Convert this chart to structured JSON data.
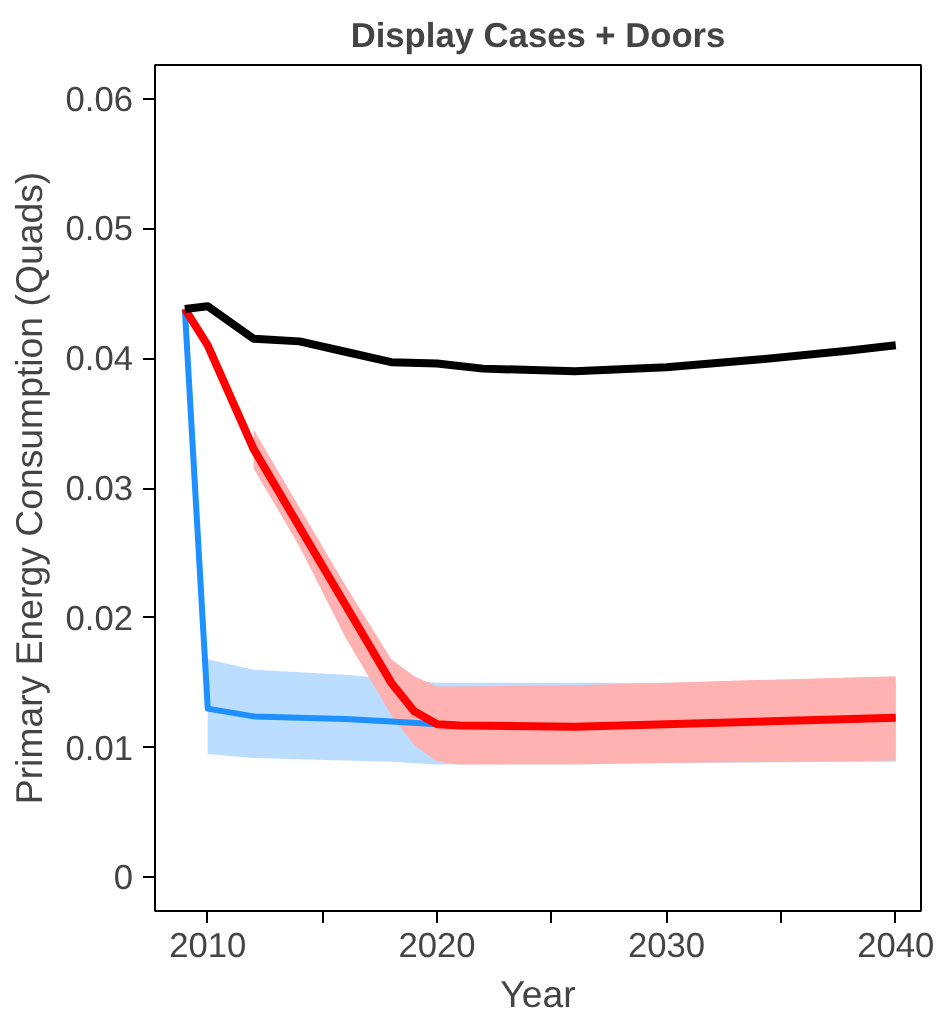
{
  "chart_data": {
    "type": "line",
    "title": "Display Cases + Doors",
    "xlabel": "Year",
    "ylabel": "Primary Energy Consumption (Quads)",
    "xlim": [
      2007.7,
      2041.1
    ],
    "ylim": [
      -0.0026,
      0.0626
    ],
    "xticks": [
      2010,
      {
        "value": 2015,
        "label": null
      },
      2020,
      {
        "value": 2025,
        "label": null
      },
      2030,
      {
        "value": 2035,
        "label": null
      },
      2040
    ],
    "yticks": [
      {
        "value": 0,
        "label": "0"
      },
      0.01,
      0.02,
      0.03,
      0.04,
      0.05,
      0.06
    ],
    "grid": false,
    "line_style": "solid",
    "marker": "none",
    "series": [
      {
        "color": "#1e90ff",
        "x": [
          2009,
          2010,
          2012,
          2016,
          2018,
          2020,
          2030,
          2040
        ],
        "values": [
          0.0438,
          0.013,
          0.0124,
          0.0122,
          0.012,
          0.0118,
          null,
          null
        ],
        "lower": [
          null,
          0.0095,
          0.0092,
          0.009,
          0.0089,
          0.0087,
          0.0088,
          0.0089
        ],
        "upper": [
          null,
          0.0168,
          0.016,
          0.0156,
          0.0153,
          0.015,
          0.015,
          0.015
        ]
      },
      {
        "color": "#ff0000",
        "x": [
          2009,
          2010,
          2012,
          2014,
          2016,
          2018,
          2019,
          2020,
          2021,
          2026,
          2030,
          2040
        ],
        "values": [
          0.0438,
          0.041,
          0.033,
          0.027,
          0.021,
          0.015,
          0.0128,
          0.0118,
          0.0117,
          0.0116,
          0.0118,
          0.0123
        ],
        "lower": [
          null,
          null,
          0.0315,
          0.0255,
          0.0185,
          0.0125,
          0.0102,
          0.0089,
          0.0087,
          0.0087,
          0.0088,
          0.009
        ],
        "upper": [
          null,
          null,
          0.0345,
          0.0285,
          0.0225,
          0.0168,
          0.0155,
          0.0147,
          0.0147,
          0.0148,
          0.015,
          0.0155
        ]
      },
      {
        "color": "#000000",
        "x": [
          2009,
          2010,
          2012,
          2014,
          2016,
          2018,
          2020,
          2022,
          2026,
          2030,
          2034,
          2038,
          2040
        ],
        "values": [
          0.0438,
          0.044,
          0.0415,
          0.0413,
          0.0405,
          0.0397,
          0.0396,
          0.0392,
          0.039,
          0.0393,
          0.0399,
          0.0406,
          0.041
        ]
      }
    ]
  }
}
